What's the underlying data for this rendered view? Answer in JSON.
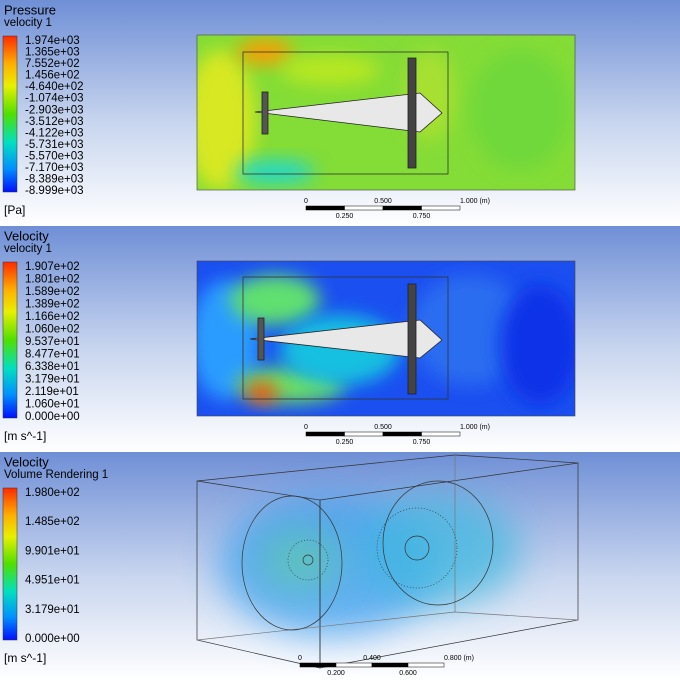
{
  "panels": [
    {
      "title": "Pressure",
      "subtitle": "velocity 1",
      "legend": [
        "1.974e+03",
        "1.365e+03",
        "7.552e+02",
        "1.456e+02",
        "-4.640e+02",
        "-1.074e+03",
        "-2.903e+03",
        "-3.512e+03",
        "-4.122e+03",
        "-5.731e+03",
        "-5.570e+03",
        "-7.170e+03",
        "-8.389e+03",
        "-8.999e+03"
      ],
      "unit": "[Pa]",
      "scale": {
        "top": [
          "0",
          "0.500",
          "1.000 (m)"
        ],
        "bottom": [
          "0.250",
          "0.750"
        ]
      }
    },
    {
      "title": "Velocity",
      "subtitle": "velocity 1",
      "legend": [
        "1.907e+02",
        "1.801e+02",
        "1.589e+02",
        "1.389e+02",
        "1.166e+02",
        "1.060e+02",
        "9.537e+01",
        "8.477e+01",
        "6.338e+01",
        "3.179e+01",
        "2.119e+01",
        "1.060e+01",
        "0.000e+00"
      ],
      "unit": "[m s^-1]",
      "scale": {
        "top": [
          "0",
          "0.500",
          "1.000 (m)"
        ],
        "bottom": [
          "0.250",
          "0.750"
        ]
      }
    },
    {
      "title": "Velocity",
      "subtitle": "Volume Rendering 1",
      "legend": [
        "1.980e+02",
        "1.485e+02",
        "9.901e+01",
        "4.951e+01",
        "3.179e+01",
        "0.000e+00"
      ],
      "unit": "[m s^-1]",
      "scale": {
        "top": [
          "0",
          "0.400",
          "0.800 (m)"
        ],
        "bottom": [
          "0.200",
          "0.600"
        ]
      }
    }
  ]
}
